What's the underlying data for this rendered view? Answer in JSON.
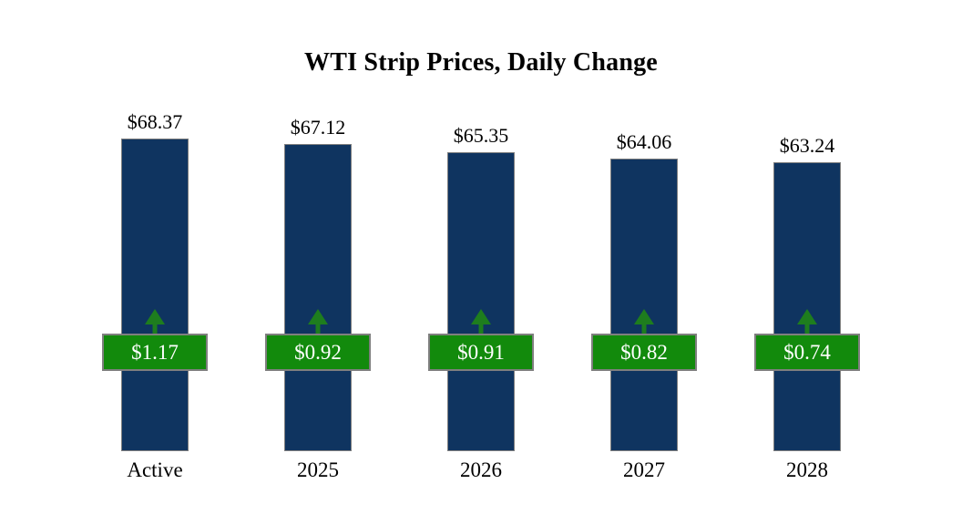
{
  "chart_data": {
    "type": "bar",
    "title": "WTI Strip Prices, Daily Change",
    "categories": [
      "Active",
      "2025",
      "2026",
      "2027",
      "2028"
    ],
    "series": [
      {
        "name": "strip_price",
        "values": [
          68.37,
          67.12,
          65.35,
          64.06,
          63.24
        ],
        "labels": [
          "$68.37",
          "$67.12",
          "$65.35",
          "$64.06",
          "$63.24"
        ]
      },
      {
        "name": "daily_change",
        "values": [
          1.17,
          0.92,
          0.91,
          0.82,
          0.74
        ],
        "labels": [
          "$1.17",
          "$0.92",
          "$0.91",
          "$0.82",
          "$0.74"
        ],
        "direction": "up"
      }
    ],
    "ylim": [
      0,
      70
    ],
    "grid": false,
    "legend": "none",
    "axis_lines": "none"
  },
  "colors": {
    "background": "#ffffff",
    "bar_fill": "#0f3460",
    "bar_border": "#7f7f7f",
    "badge_fill": "#128a0c",
    "badge_border": "#7f7f7f",
    "badge_text": "#ffffff",
    "arrow": "#1e7d1e",
    "title_text": "#000000",
    "label_text": "#000000"
  }
}
